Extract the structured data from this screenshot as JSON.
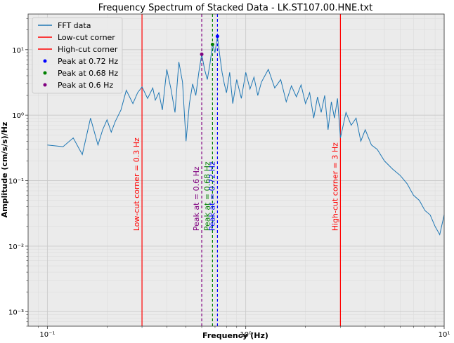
{
  "chart_data": {
    "type": "line",
    "title": "Frequency Spectrum of Stacked Data - LK.ST107.00.HNE.txt",
    "xlabel": "Frequency (Hz)",
    "ylabel": "Amplitude (cm/s/s)/Hz",
    "xscale": "log",
    "yscale": "log",
    "xlim": [
      0.08,
      10
    ],
    "ylim": [
      0.0006,
      35
    ],
    "grid": true,
    "legend_position": "top-left",
    "x_ticks": [
      {
        "label": "10⁻¹",
        "value": 0.1
      },
      {
        "label": "10⁰",
        "value": 1
      },
      {
        "label": "10¹",
        "value": 10
      }
    ],
    "y_ticks": [
      {
        "label": "10⁻³",
        "value": 0.001
      },
      {
        "label": "10⁻²",
        "value": 0.01
      },
      {
        "label": "10⁻¹",
        "value": 0.1
      },
      {
        "label": "10⁰",
        "value": 1
      },
      {
        "label": "10¹",
        "value": 10
      }
    ],
    "series": [
      {
        "name": "FFT data",
        "color": "#1f77b4",
        "x": [
          0.1,
          0.12,
          0.135,
          0.15,
          0.165,
          0.18,
          0.19,
          0.2,
          0.21,
          0.22,
          0.235,
          0.25,
          0.27,
          0.285,
          0.3,
          0.32,
          0.34,
          0.35,
          0.365,
          0.38,
          0.4,
          0.42,
          0.44,
          0.46,
          0.48,
          0.5,
          0.52,
          0.54,
          0.56,
          0.58,
          0.6,
          0.62,
          0.64,
          0.66,
          0.68,
          0.7,
          0.72,
          0.74,
          0.76,
          0.78,
          0.8,
          0.83,
          0.86,
          0.9,
          0.95,
          1.0,
          1.05,
          1.1,
          1.15,
          1.2,
          1.3,
          1.4,
          1.5,
          1.6,
          1.7,
          1.8,
          1.9,
          2.0,
          2.1,
          2.2,
          2.3,
          2.4,
          2.5,
          2.6,
          2.7,
          2.8,
          2.9,
          3.0,
          3.2,
          3.4,
          3.6,
          3.8,
          4.0,
          4.3,
          4.6,
          5.0,
          5.5,
          6.0,
          6.5,
          7.0,
          7.5,
          8.0,
          8.5,
          9.0,
          9.5,
          10.0
        ],
        "y": [
          0.35,
          0.33,
          0.45,
          0.25,
          0.9,
          0.35,
          0.6,
          0.85,
          0.55,
          0.8,
          1.2,
          2.4,
          1.5,
          2.2,
          2.7,
          1.8,
          2.6,
          1.7,
          2.2,
          1.2,
          5.0,
          2.5,
          1.1,
          6.5,
          3.2,
          0.4,
          1.5,
          3.0,
          2.0,
          4.5,
          8.5,
          5.0,
          3.5,
          6.0,
          12.0,
          9.0,
          16.0,
          8.0,
          4.5,
          3.0,
          2.2,
          4.5,
          1.5,
          3.5,
          1.8,
          4.5,
          2.5,
          3.8,
          2.0,
          3.2,
          5.0,
          2.6,
          3.5,
          1.6,
          2.8,
          1.9,
          2.9,
          1.5,
          2.2,
          0.9,
          1.9,
          1.1,
          2.0,
          0.6,
          1.6,
          0.9,
          1.8,
          0.45,
          1.1,
          0.7,
          0.9,
          0.4,
          0.6,
          0.35,
          0.3,
          0.2,
          0.15,
          0.12,
          0.09,
          0.06,
          0.05,
          0.035,
          0.03,
          0.02,
          0.015,
          0.03
        ]
      }
    ],
    "vlines": [
      {
        "legend": "Low-cut corner",
        "label": "Low-cut corner = 0.3 Hz",
        "x": 0.3,
        "color": "#ff0000",
        "style": "solid"
      },
      {
        "legend": "High-cut corner",
        "label": "High-cut corner = 3 Hz",
        "x": 3.0,
        "color": "#ff0000",
        "style": "solid"
      },
      {
        "legend": "",
        "label": "Peak at = 0.6 Hz",
        "x": 0.6,
        "color": "#800080",
        "style": "dashed"
      },
      {
        "legend": "",
        "label": "Peak at = 0.68 Hz",
        "x": 0.68,
        "color": "#008000",
        "style": "dashed"
      },
      {
        "legend": "",
        "label": "Peak at = 0.72 Hz",
        "x": 0.72,
        "color": "#0000ff",
        "style": "dashed"
      }
    ],
    "peaks": [
      {
        "name": "Peak at 0.72 Hz",
        "x": 0.72,
        "y": 16.0,
        "color": "#0000ff"
      },
      {
        "name": "Peak at 0.68 Hz",
        "x": 0.68,
        "y": 12.0,
        "color": "#008000"
      },
      {
        "name": "Peak at 0.6 Hz",
        "x": 0.6,
        "y": 8.5,
        "color": "#800080"
      }
    ]
  }
}
